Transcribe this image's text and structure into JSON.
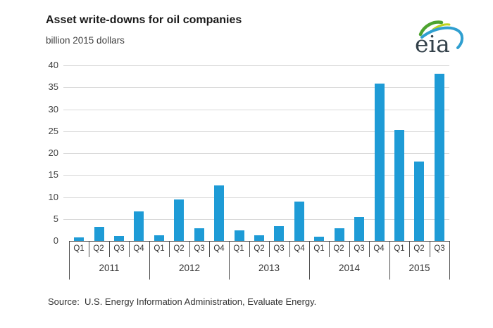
{
  "header": {
    "title": "Asset write-downs for oil companies",
    "subtitle": "billion 2015 dollars"
  },
  "logo": {
    "text": "eia"
  },
  "source": "Source:  U.S. Energy Information Administration, Evaluate Energy.",
  "colors": {
    "bar": "#1e9bd6",
    "gridline": "#d9d9d9",
    "axis": "#4d4d4d",
    "text": "#404040",
    "logo_text": "#33414a",
    "logo_green": "#4da32f",
    "logo_yellow": "#bfd21e",
    "logo_blue": "#2f9fd0"
  },
  "chart_data": {
    "type": "bar",
    "title": "Asset write-downs for oil companies",
    "subtitle_unit": "billion 2015 dollars",
    "xlabel": "",
    "ylabel": "billion 2015 dollars",
    "ylim": [
      0,
      40
    ],
    "yticks": [
      0,
      5,
      10,
      15,
      20,
      25,
      30,
      35,
      40
    ],
    "grid": true,
    "legend": "none",
    "categories": [
      "Q1",
      "Q2",
      "Q3",
      "Q4",
      "Q1",
      "Q2",
      "Q3",
      "Q4",
      "Q1",
      "Q2",
      "Q3",
      "Q4",
      "Q1",
      "Q2",
      "Q3",
      "Q4",
      "Q1",
      "Q2",
      "Q3"
    ],
    "year_groups": [
      {
        "label": "2011",
        "count": 4
      },
      {
        "label": "2012",
        "count": 4
      },
      {
        "label": "2013",
        "count": 4
      },
      {
        "label": "2014",
        "count": 4
      },
      {
        "label": "2015",
        "count": 3
      }
    ],
    "values": [
      0.8,
      3.2,
      1.1,
      6.7,
      1.2,
      9.5,
      2.8,
      12.6,
      2.4,
      1.2,
      3.4,
      9.0,
      1.0,
      2.9,
      5.5,
      35.8,
      25.2,
      18.0,
      38.1
    ]
  }
}
